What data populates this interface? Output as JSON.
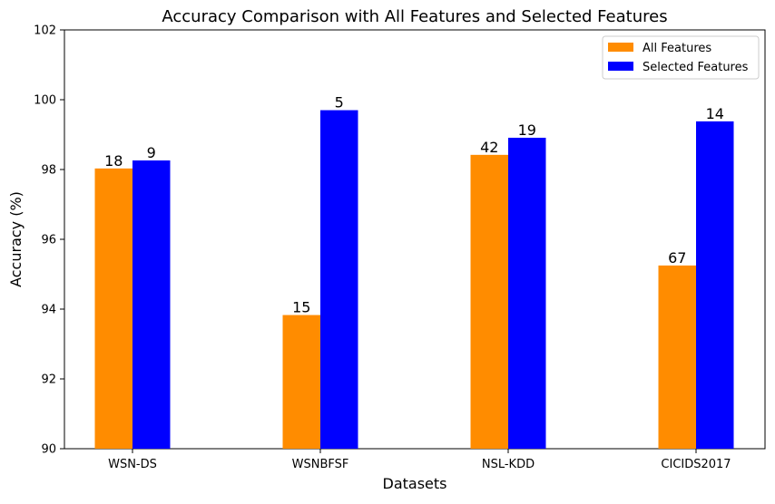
{
  "chart_data": {
    "type": "bar",
    "title": "Accuracy Comparison with All Features and Selected Features",
    "xlabel": "Datasets",
    "ylabel": "Accuracy (%)",
    "ylim": [
      90,
      102
    ],
    "yticks": [
      90,
      92,
      94,
      96,
      98,
      100,
      102
    ],
    "grid": false,
    "legend_position": "top-right",
    "categories": [
      "WSN-DS",
      "WSNBFSF",
      "NSL-KDD",
      "CICIDS2017"
    ],
    "series": [
      {
        "name": "All Features",
        "color": "#ff8c00",
        "values": [
          98.03,
          93.83,
          98.42,
          95.25
        ],
        "labels": [
          "18",
          "15",
          "42",
          "67"
        ]
      },
      {
        "name": "Selected Features",
        "color": "#0000ff",
        "values": [
          98.26,
          99.7,
          98.91,
          99.38
        ],
        "labels": [
          "9",
          "5",
          "19",
          "14"
        ]
      }
    ]
  }
}
